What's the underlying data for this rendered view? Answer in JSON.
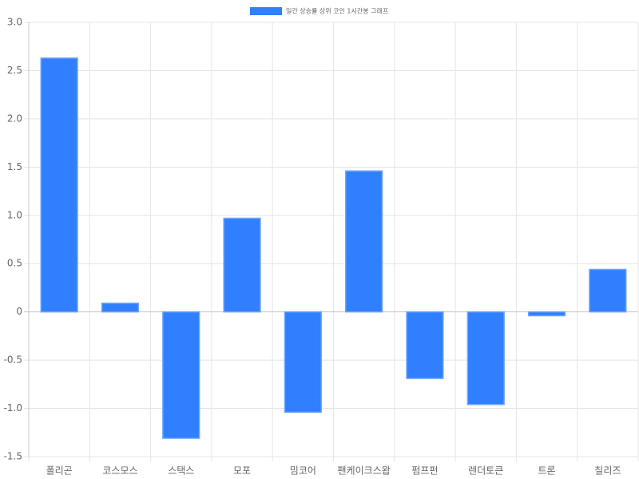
{
  "chart_data": {
    "type": "bar",
    "categories": [
      "폴리곤",
      "코스모스",
      "스택스",
      "모포",
      "밈코어",
      "팬케이크스왑",
      "펌프펀",
      "렌더토큰",
      "트론",
      "칠리즈"
    ],
    "series": [
      {
        "name": "일간 상승률 상위 코인 1시간봉 그래프",
        "color": "#2f7fff",
        "values": [
          2.63,
          0.09,
          -1.31,
          0.97,
          -1.04,
          1.46,
          -0.69,
          -0.96,
          -0.04,
          0.44
        ]
      }
    ],
    "ylim": [
      -1.5,
      3
    ],
    "yticks": [
      {
        "value": -1.5,
        "label": "-1.5"
      },
      {
        "value": -1,
        "label": "-1.0"
      },
      -0.5,
      0,
      0.5,
      {
        "value": 1,
        "label": "1.0"
      },
      1.5,
      {
        "value": 2,
        "label": "2.0"
      },
      2.5,
      {
        "value": 3,
        "label": "3.0"
      }
    ],
    "grid": true,
    "legend": "top"
  }
}
